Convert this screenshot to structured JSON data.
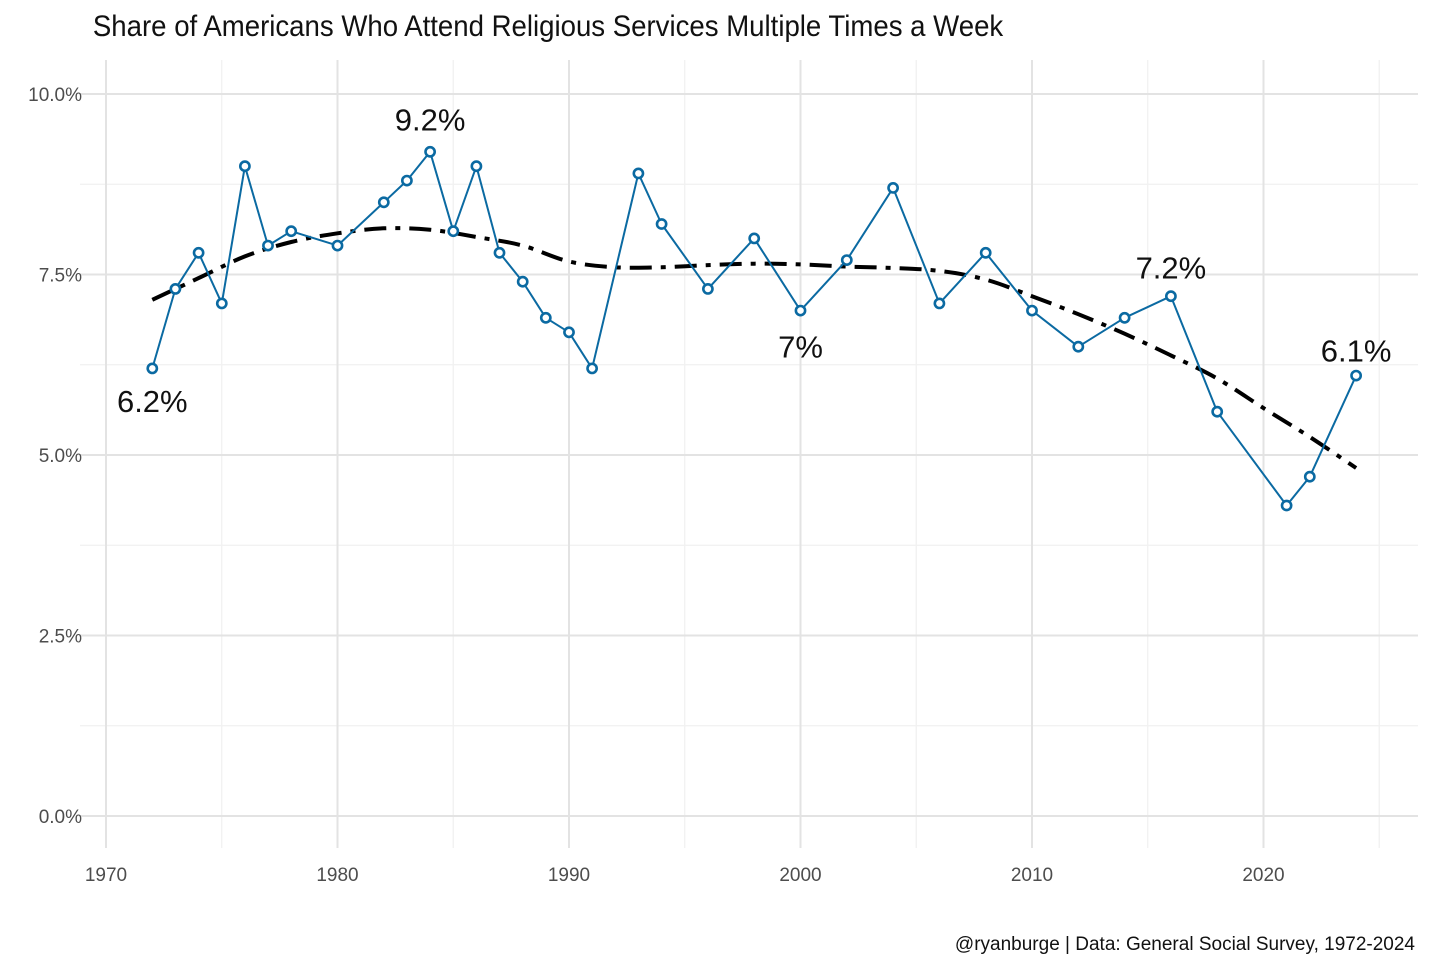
{
  "chart_data": {
    "type": "line",
    "title": "Share of Americans Who Attend Religious Services Multiple Times a Week",
    "caption": "@ryanburge | Data: General Social Survey, 1972-2024",
    "xlabel": "",
    "ylabel": "",
    "xlim": [
      1970,
      2026
    ],
    "ylim": [
      0,
      10
    ],
    "x_ticks": [
      1970,
      1980,
      1990,
      2000,
      2010,
      2020
    ],
    "x_tick_labels": [
      "1970",
      "1980",
      "1990",
      "2000",
      "2010",
      "2020"
    ],
    "y_ticks": [
      0,
      2.5,
      5,
      7.5,
      10
    ],
    "y_tick_labels": [
      "0.0%",
      "2.5%",
      "5.0%",
      "7.5%",
      "10.0%"
    ],
    "grid": true,
    "legend": "none",
    "series": [
      {
        "style": "line-with-open-points",
        "color": "#0b6aa2",
        "x": [
          1972,
          1973,
          1974,
          1975,
          1976,
          1977,
          1978,
          1980,
          1982,
          1983,
          1984,
          1985,
          1986,
          1987,
          1988,
          1989,
          1990,
          1991,
          1993,
          1994,
          1996,
          1998,
          2000,
          2002,
          2004,
          2006,
          2008,
          2010,
          2012,
          2014,
          2016,
          2018,
          2021,
          2022,
          2024
        ],
        "y": [
          6.2,
          7.3,
          7.8,
          7.1,
          9.0,
          7.9,
          8.1,
          7.9,
          8.5,
          8.8,
          9.2,
          8.1,
          9.0,
          7.8,
          7.4,
          6.9,
          6.7,
          6.2,
          8.9,
          8.2,
          7.3,
          8.0,
          7.0,
          7.7,
          8.7,
          7.1,
          7.8,
          7.0,
          6.5,
          6.9,
          7.2,
          5.6,
          4.3,
          4.7,
          6.1
        ]
      },
      {
        "style": "smoothed-trend-dashdot",
        "color": "#000000",
        "x": [
          1972,
          1974,
          1976,
          1978,
          1980,
          1982,
          1984,
          1986,
          1988,
          1990,
          1992,
          1994,
          1996,
          1998,
          2000,
          2002,
          2004,
          2006,
          2008,
          2010,
          2012,
          2014,
          2016,
          2018,
          2020,
          2022,
          2024
        ],
        "y": [
          7.15,
          7.45,
          7.75,
          7.95,
          8.07,
          8.14,
          8.12,
          8.02,
          7.9,
          7.68,
          7.6,
          7.6,
          7.63,
          7.65,
          7.64,
          7.61,
          7.59,
          7.55,
          7.43,
          7.2,
          6.95,
          6.68,
          6.38,
          6.06,
          5.65,
          5.25,
          4.82
        ]
      }
    ],
    "annotations": [
      {
        "text": "6.2%",
        "x": 1972,
        "y": 5.75
      },
      {
        "text": "9.2%",
        "x": 1984,
        "y": 9.65
      },
      {
        "text": "7%",
        "x": 2000,
        "y": 6.5
      },
      {
        "text": "7.2%",
        "x": 2016,
        "y": 7.6
      },
      {
        "text": "6.1%",
        "x": 2024,
        "y": 6.45
      }
    ]
  }
}
